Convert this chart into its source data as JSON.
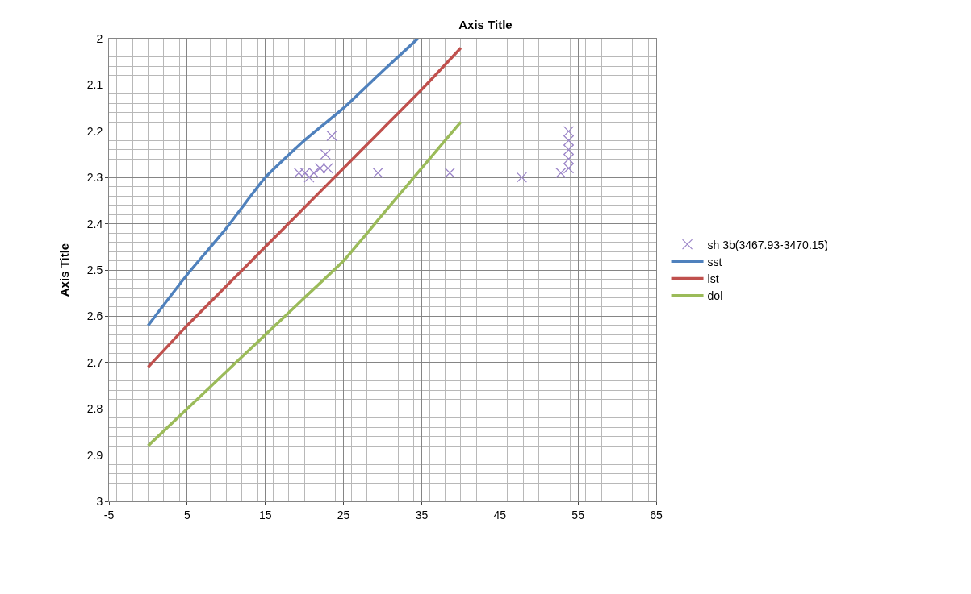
{
  "chart_data": {
    "type": "line",
    "title": "Axis Title",
    "ylabel": "Axis Title",
    "xlim": [
      -5,
      65
    ],
    "xticks": [
      -5,
      5,
      15,
      25,
      35,
      45,
      55,
      65
    ],
    "ylim": [
      3,
      2
    ],
    "yticks": [
      2,
      2.1,
      2.2,
      2.3,
      2.4,
      2.5,
      2.6,
      2.7,
      2.8,
      2.9,
      3
    ],
    "grid": true,
    "legend": "right",
    "line_style": "solid",
    "series": [
      {
        "name": "sh 3b(3467.93-3470.15)",
        "type": "scatter",
        "marker": "cross",
        "color": "#9b84c8",
        "x": [
          23.5,
          22.7,
          23.0,
          22.0,
          21.2,
          20.1,
          19.3,
          20.6,
          29.4,
          38.6,
          47.8,
          52.8,
          53.8,
          53.8,
          53.8,
          53.8,
          53.8
        ],
        "values": [
          2.21,
          2.25,
          2.28,
          2.28,
          2.29,
          2.29,
          2.29,
          2.3,
          2.29,
          2.29,
          2.3,
          2.29,
          2.2,
          2.22,
          2.24,
          2.26,
          2.28
        ]
      },
      {
        "name": "sst",
        "color": "#4f81bd",
        "x": [
          0,
          5,
          10,
          15,
          20,
          25,
          30,
          34.5
        ],
        "values": [
          2.62,
          2.51,
          2.41,
          2.3,
          2.22,
          2.15,
          2.07,
          2.0
        ]
      },
      {
        "name": "lst",
        "color": "#c0504d",
        "x": [
          0,
          5,
          10,
          15,
          20,
          25,
          30,
          35,
          40
        ],
        "values": [
          2.71,
          2.62,
          2.535,
          2.45,
          2.365,
          2.28,
          2.195,
          2.11,
          2.02
        ]
      },
      {
        "name": "dol",
        "color": "#9bbb59",
        "x": [
          0,
          5,
          10,
          15,
          20,
          25,
          30,
          35,
          40
        ],
        "values": [
          2.88,
          2.8,
          2.72,
          2.64,
          2.56,
          2.48,
          2.38,
          2.28,
          2.18
        ]
      }
    ]
  }
}
